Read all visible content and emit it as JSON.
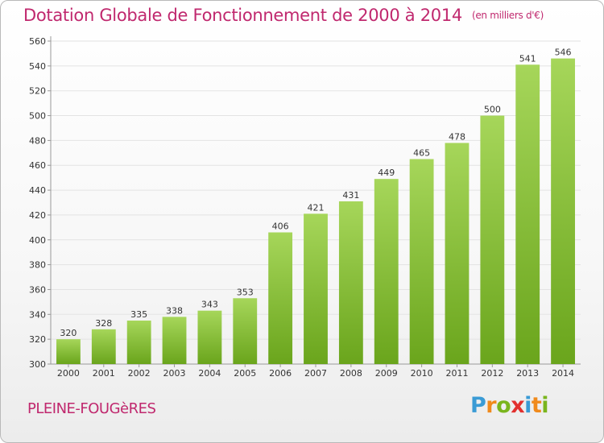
{
  "header": {
    "title": "Dotation Globale de Fonctionnement de 2000 à 2014",
    "unit": "(en milliers d'€)"
  },
  "footer": {
    "commune": "PLEINE-FOUGèRES"
  },
  "logo": {
    "letters": [
      "P",
      "r",
      "o",
      "x",
      "i",
      "t",
      "i"
    ],
    "colors": [
      "#3a9bd5",
      "#f08a1c",
      "#7ab51d",
      "#e2302e",
      "#3a9bd5",
      "#f08a1c",
      "#7ab51d"
    ]
  },
  "colors": {
    "title": "#c0286e",
    "bar_light": "#a6d65a",
    "bar_dark": "#6aa51c",
    "grid": "#e3e3e3",
    "axis_text": "#333333"
  },
  "chart_data": {
    "type": "bar",
    "categories": [
      "2000",
      "2001",
      "2002",
      "2003",
      "2004",
      "2005",
      "2006",
      "2007",
      "2008",
      "2009",
      "2010",
      "2011",
      "2012",
      "2013",
      "2014"
    ],
    "values": [
      320,
      328,
      335,
      338,
      343,
      353,
      406,
      421,
      431,
      449,
      465,
      478,
      500,
      541,
      546
    ],
    "ylim": [
      300,
      560
    ],
    "yticks": [
      300,
      320,
      340,
      360,
      380,
      400,
      420,
      440,
      460,
      480,
      500,
      520,
      540,
      560
    ],
    "grid": true,
    "data_labels": true
  }
}
